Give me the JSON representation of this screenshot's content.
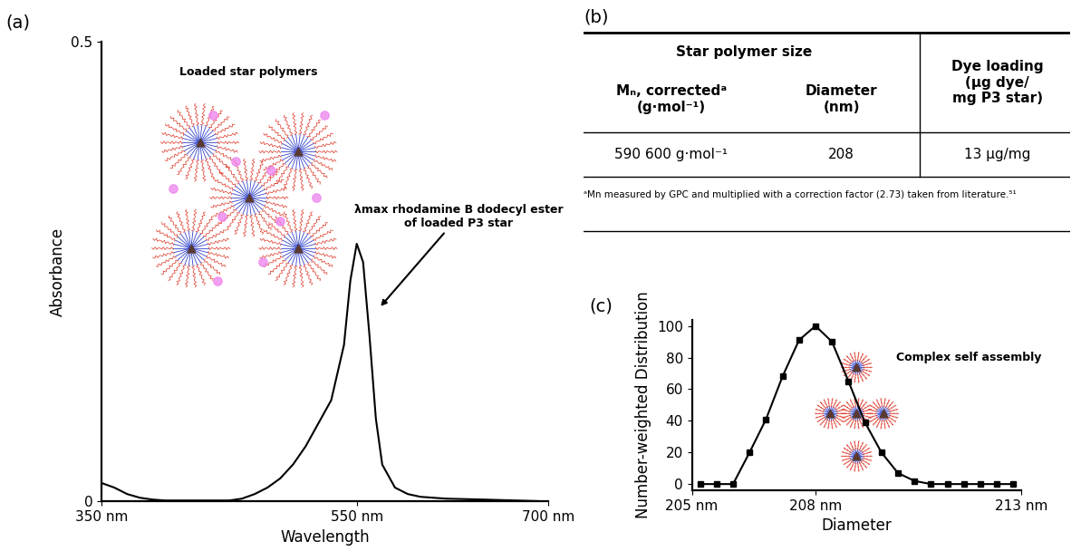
{
  "chart_data": [
    {
      "type": "line",
      "title": "(a)",
      "xlabel": "Wavelength",
      "ylabel": "Absorbance",
      "x": [
        350,
        360,
        370,
        380,
        390,
        400,
        410,
        420,
        430,
        440,
        450,
        460,
        470,
        480,
        490,
        500,
        510,
        520,
        530,
        540,
        545,
        550,
        555,
        560,
        565,
        570,
        580,
        590,
        600,
        620,
        650,
        700
      ],
      "values": [
        0.02,
        0.015,
        0.008,
        0.004,
        0.002,
        0.001,
        0.001,
        0.001,
        0.001,
        0.001,
        0.001,
        0.003,
        0.008,
        0.015,
        0.025,
        0.04,
        0.06,
        0.085,
        0.11,
        0.17,
        0.24,
        0.28,
        0.26,
        0.18,
        0.09,
        0.04,
        0.015,
        0.008,
        0.005,
        0.003,
        0.002,
        0.0
      ],
      "color": "#000000",
      "xlim": [
        350,
        700
      ],
      "ylim": [
        0,
        0.5
      ],
      "xticks": [
        {
          "value": 350,
          "label": "350 nm"
        },
        {
          "value": 550,
          "label": "550 nm"
        },
        {
          "value": 700,
          "label": "700 nm"
        }
      ],
      "yticks": [
        0,
        0.5
      ],
      "annotations": [
        "Loaded star polymers",
        "λmax rhodamine B dodecyl ester\nof loaded P3 star"
      ]
    },
    {
      "type": "line",
      "title": "(c)",
      "xlabel": "Diameter",
      "ylabel": "Number-weighted Distribution",
      "x": [
        205.2,
        205.6,
        206.0,
        206.4,
        206.8,
        207.2,
        207.6,
        208.0,
        208.4,
        208.8,
        209.2,
        209.6,
        210.0,
        210.4,
        210.8,
        211.2,
        211.6,
        212.0,
        212.4,
        212.8
      ],
      "values": [
        0,
        0,
        0,
        20,
        41,
        68,
        91,
        100,
        90,
        65,
        39,
        20,
        7,
        2,
        0,
        0,
        0,
        0,
        0,
        0
      ],
      "color": "#000000",
      "marker": "square",
      "xlim": [
        205,
        213
      ],
      "ylim": [
        -4,
        104
      ],
      "xticks": [
        {
          "value": 205,
          "label": "205 nm"
        },
        {
          "value": 208,
          "label": "208 nm"
        },
        {
          "value": 213,
          "label": "213 nm"
        }
      ],
      "yticks": [
        0,
        20,
        40,
        60,
        80,
        100
      ],
      "annotations": [
        "Complex self assembly"
      ]
    }
  ],
  "table": {
    "title": "(b)",
    "header": [
      "Star polymer size",
      "Dye loading\n(μg dye/\nmg P3 star)"
    ],
    "columns": [
      "Mₙ, correctedᵃ\n(g·mol⁻¹)",
      "Diameter\n(nm)"
    ],
    "rows": [
      [
        "590 600 g·mol⁻¹",
        "208",
        "13 μg/mg"
      ]
    ],
    "footnote": "ᵃMn measured by GPC and multiplied with a correction factor (2.73) taken from literature.⁵¹"
  }
}
